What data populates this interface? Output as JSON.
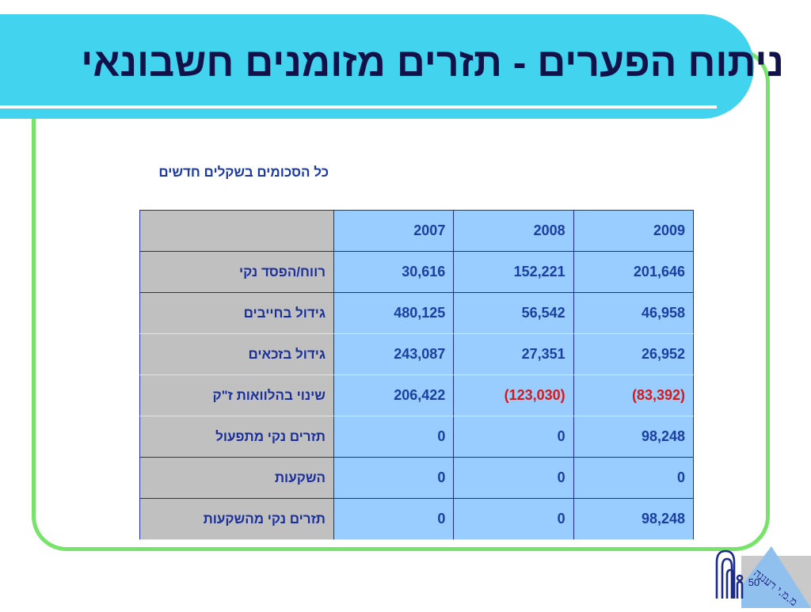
{
  "slide": {
    "title": "ניתוח הפערים - תזרים מזומנים חשבונאי",
    "subtitle": "כל הסכומים בשקלים חדשים",
    "page_number": "50",
    "logo_text": "מ.מ.י רעננה"
  },
  "colors": {
    "title_band": "#42d3ef",
    "frame": "#77e36a",
    "label_cell": "#c0c0c0",
    "value_cell": "#99ccff",
    "text": "#1a3fa0",
    "negative": "#d81818"
  },
  "table": {
    "columns": [
      "2009",
      "2008",
      "2007",
      ""
    ],
    "rows": [
      {
        "label": "רווח/הפסד נקי",
        "v2009": "201,646",
        "v2008": "152,221",
        "v2007": "30,616"
      },
      {
        "label": "גידול בחייבים",
        "v2009": "46,958",
        "v2008": "56,542",
        "v2007": "480,125"
      },
      {
        "label": "גידול בזכאים",
        "v2009": "26,952",
        "v2008": "27,351",
        "v2007": "243,087"
      },
      {
        "label": "שינוי בהלוואות ז\"ק",
        "v2009": "(83,392)",
        "v2008": "(123,030)",
        "v2007": "206,422"
      },
      {
        "label": "תזרים נקי מתפעול",
        "v2009": "98,248",
        "v2008": "0",
        "v2007": "0"
      },
      {
        "label": "השקעות",
        "v2009": "0",
        "v2008": "0",
        "v2007": "0"
      },
      {
        "label": "תזרים נקי מהשקעות",
        "v2009": "98,248",
        "v2008": "0",
        "v2007": "0"
      }
    ]
  }
}
